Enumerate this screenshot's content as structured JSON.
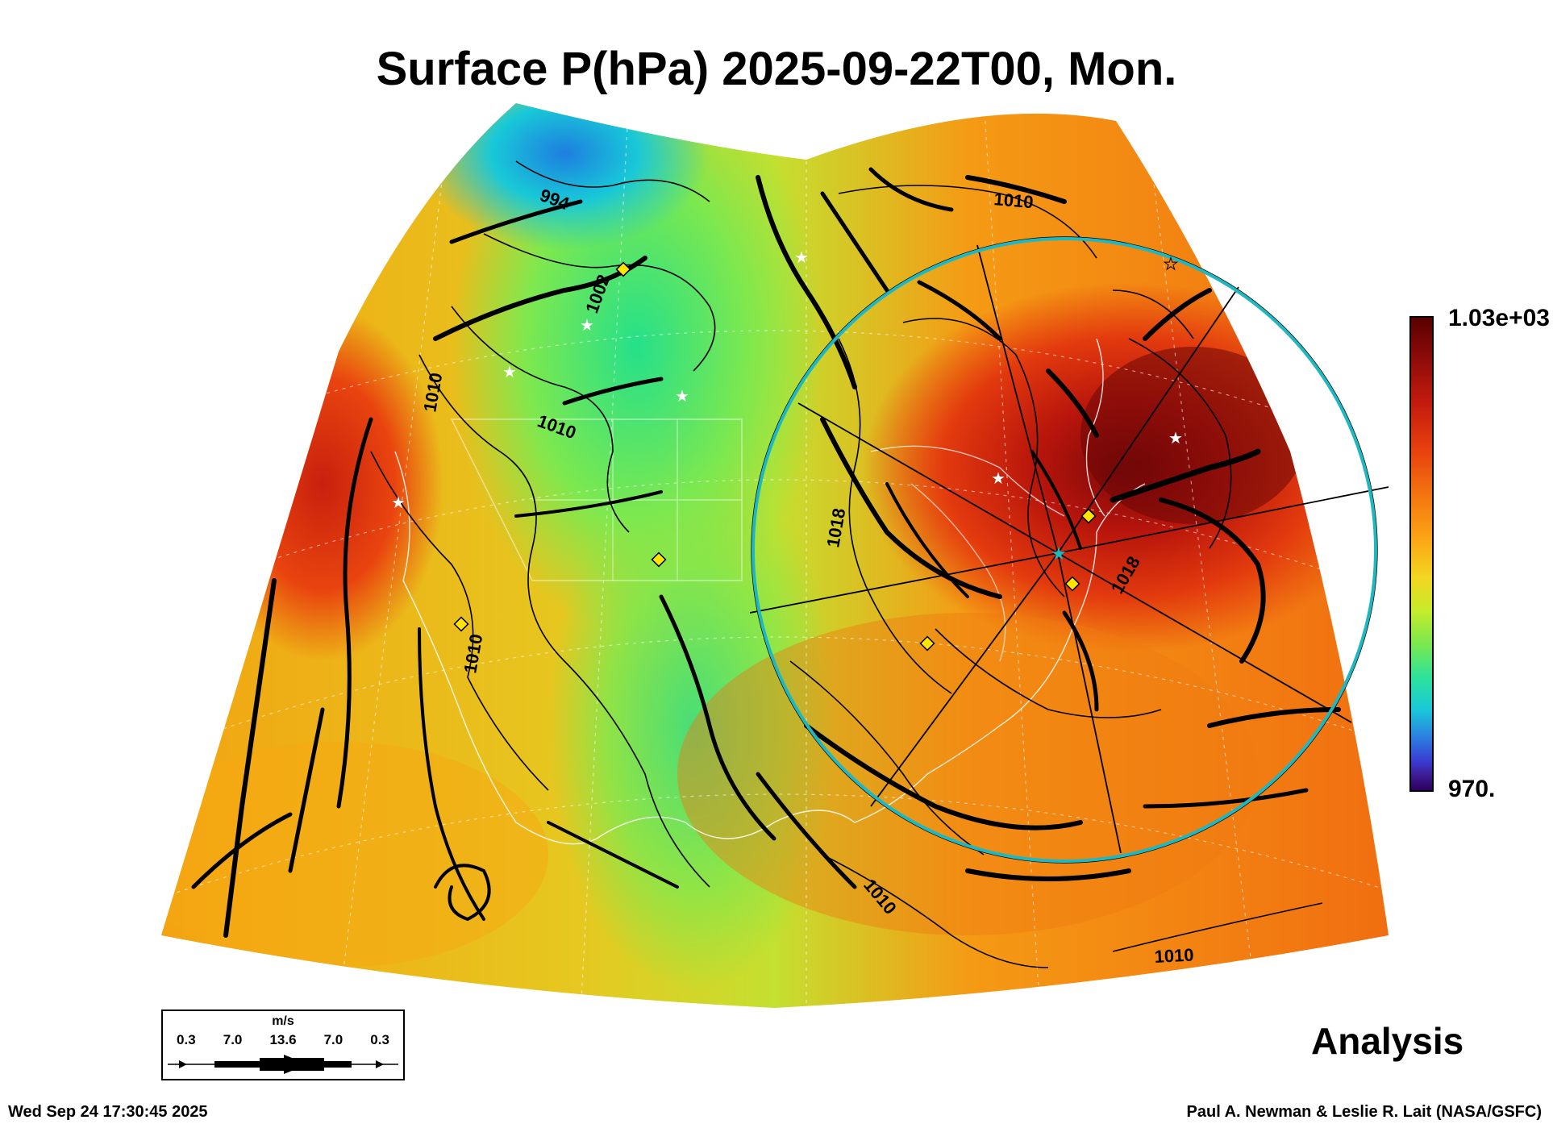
{
  "title": "Surface P(hPa) 2025-09-22T00, Mon.",
  "colorbar": {
    "max_label": "1.03e+03",
    "min_label": "970."
  },
  "contour_labels": [
    "994",
    "1002",
    "1010",
    "1010",
    "1010",
    "1018",
    "1010",
    "1010",
    "1010",
    "1018"
  ],
  "wind_legend": {
    "unit": "m/s",
    "values": [
      "0.3",
      "7.0",
      "13.6",
      "7.0",
      "0.3"
    ]
  },
  "panel_label": "Analysis",
  "timestamp": "Wed Sep 24 17:30:45 2025",
  "credit": "Paul A. Newman & Leslie R. Lait (NASA/GSFC)",
  "colors": {
    "ring": "#1fb8c0",
    "marker_diamond": "#ffe600",
    "marker_star": "#ffffff",
    "contour": "#000000"
  }
}
